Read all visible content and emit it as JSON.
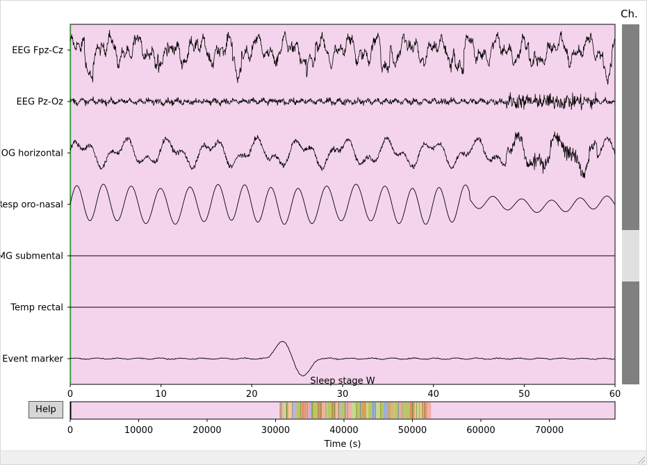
{
  "channels_panel": {
    "title": "Ch."
  },
  "help_button": {
    "label": "Help"
  },
  "main_plot": {
    "channel_names": [
      "EEG Fpz-Cz",
      "EEG Pz-Oz",
      "EOG horizontal",
      "Resp oro-nasal",
      "EMG submental",
      "Temp rectal",
      "Event marker"
    ],
    "x_ticks": [
      "0",
      "10",
      "20",
      "30",
      "40",
      "50",
      "60"
    ],
    "annotation_label": "Sleep stage W",
    "background_color": "#f4d4ec",
    "trace_color": "#000000"
  },
  "overview": {
    "x_ticks": [
      "0",
      "10000",
      "20000",
      "30000",
      "40000",
      "50000",
      "60000",
      "70000"
    ],
    "x_label": "Time (s)",
    "stage_colors": [
      "#f0b0a8",
      "#c8d890",
      "#f5c896",
      "#c0b0e0",
      "#b8c860",
      "#e8906a",
      "#9ab0d8",
      "#d8a050"
    ]
  },
  "scrollbar": {
    "track_color": "#e0e0e0",
    "thumb_color": "#808080"
  }
}
